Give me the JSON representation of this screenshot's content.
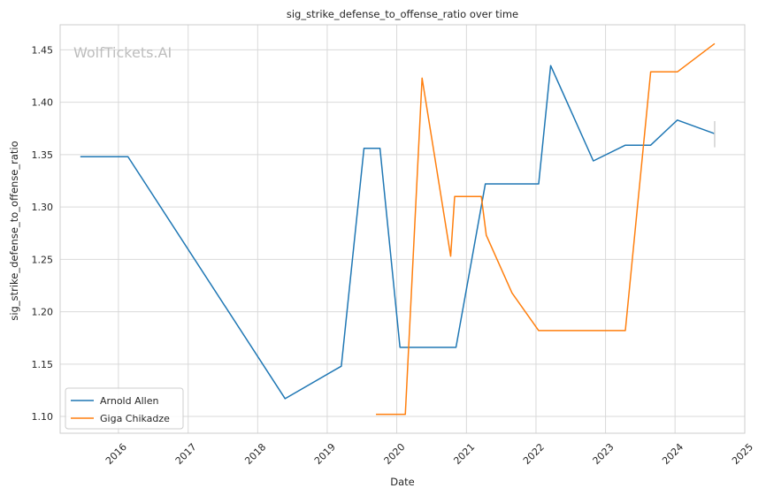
{
  "chart_data": {
    "type": "line",
    "title": "sig_strike_defense_to_offense_ratio over time",
    "xlabel": "Date",
    "ylabel": "sig_strike_defense_to_offense_ratio",
    "watermark": "WolfTickets.AI",
    "xlim": [
      "2015-03-01",
      "2025-01-01"
    ],
    "ylim": [
      1.084,
      1.474
    ],
    "x_ticks": [
      "2016",
      "2017",
      "2018",
      "2019",
      "2020",
      "2021",
      "2022",
      "2023",
      "2024",
      "2025"
    ],
    "y_ticks": [
      1.1,
      1.15,
      1.2,
      1.25,
      1.3,
      1.35,
      1.4,
      1.45
    ],
    "y_tick_labels": [
      "1.10",
      "1.15",
      "1.20",
      "1.25",
      "1.30",
      "1.35",
      "1.40",
      "1.45"
    ],
    "grid": true,
    "legend_position": "lower-left",
    "series": [
      {
        "name": "Arnold Allen",
        "color": "#1f77b4",
        "points": [
          [
            "2015-06-15",
            1.348
          ],
          [
            "2016-02-20",
            1.348
          ],
          [
            "2018-05-25",
            1.117
          ],
          [
            "2019-03-16",
            1.148
          ],
          [
            "2019-07-13",
            1.356
          ],
          [
            "2019-10-05",
            1.356
          ],
          [
            "2020-01-18",
            1.166
          ],
          [
            "2020-11-07",
            1.166
          ],
          [
            "2021-04-10",
            1.322
          ],
          [
            "2022-01-15",
            1.322
          ],
          [
            "2022-03-19",
            1.435
          ],
          [
            "2022-10-29",
            1.344
          ],
          [
            "2023-04-15",
            1.359
          ],
          [
            "2023-08-26",
            1.359
          ],
          [
            "2024-01-13",
            1.383
          ],
          [
            "2024-07-27",
            1.37
          ]
        ]
      },
      {
        "name": "Giga Chikadze",
        "color": "#ff7f0e",
        "points": [
          [
            "2019-09-14",
            1.102
          ],
          [
            "2020-02-15",
            1.102
          ],
          [
            "2020-05-13",
            1.423
          ],
          [
            "2020-10-10",
            1.253
          ],
          [
            "2020-10-31",
            1.31
          ],
          [
            "2021-03-20",
            1.31
          ],
          [
            "2021-04-15",
            1.273
          ],
          [
            "2021-08-28",
            1.218
          ],
          [
            "2022-01-15",
            1.182
          ],
          [
            "2023-04-15",
            1.182
          ],
          [
            "2023-08-26",
            1.429
          ],
          [
            "2024-01-13",
            1.429
          ],
          [
            "2024-07-27",
            1.456
          ]
        ]
      }
    ]
  }
}
